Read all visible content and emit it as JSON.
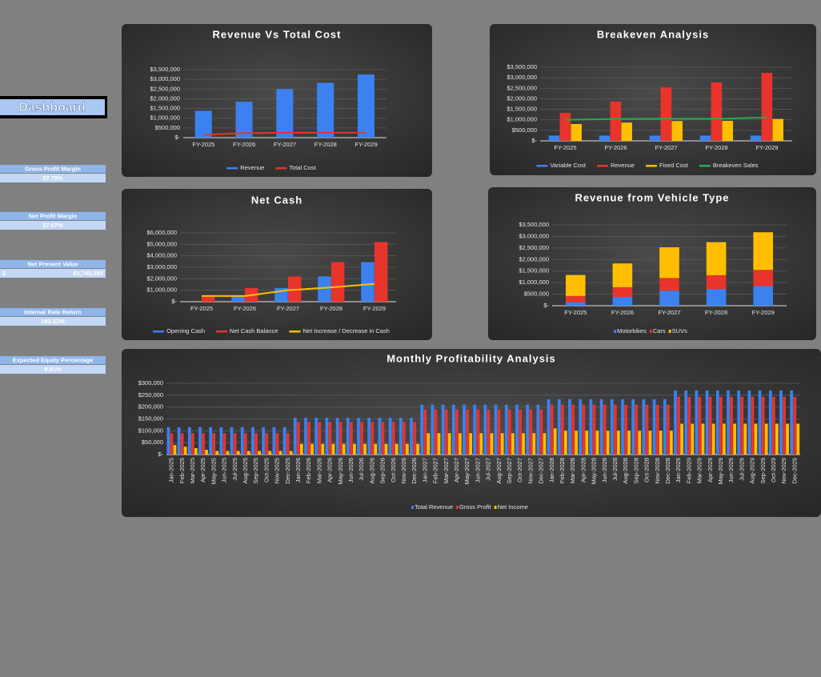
{
  "sidebar": {
    "title": "Dashboard",
    "kpis": [
      {
        "label": "Gross Profit Margin",
        "value": "87.79%"
      },
      {
        "label": "Net Profit Margin",
        "value": "37.07%"
      },
      {
        "label": "Net Present Value",
        "prefix": "$",
        "value": "61,740,399"
      },
      {
        "label": "Internal Rate Return",
        "value": "192.33%"
      },
      {
        "label": "Expected Equity Percentage",
        "value": "9.81%"
      }
    ]
  },
  "chart_data": [
    {
      "type": "bar",
      "title": "Revenue Vs Total Cost",
      "categories": [
        "FY-2025",
        "FY-2026",
        "FY-2027",
        "FY-2028",
        "FY-2029"
      ],
      "series": [
        {
          "name": "Revenue",
          "type": "bar",
          "color": "#3b82f0",
          "values": [
            1380000,
            1850000,
            2500000,
            2820000,
            3250000
          ]
        },
        {
          "name": "Total Cost",
          "type": "line",
          "color": "#e8342b",
          "values": [
            150000,
            230000,
            250000,
            250000,
            250000
          ]
        }
      ],
      "ylim": [
        0,
        3500000
      ],
      "yticks": [
        {
          "value": 0,
          "label": "$-"
        },
        {
          "value": 500000,
          "label": "$500,000"
        },
        {
          "value": 1000000,
          "label": "$1,000,000"
        },
        {
          "value": 1500000,
          "label": "$1,500,000"
        },
        {
          "value": 2000000,
          "label": "$2,000,000"
        },
        {
          "value": 2500000,
          "label": "$2,500,000"
        },
        {
          "value": 3000000,
          "label": "$3,000,000"
        },
        {
          "value": 3500000,
          "label": "$3,500,000"
        }
      ],
      "grid": true,
      "legend": "bottom"
    },
    {
      "type": "bar",
      "title": "Breakeven Analysis",
      "categories": [
        "FY-2025",
        "FY-2026",
        "FY-2027",
        "FY-2028",
        "FY-2029"
      ],
      "series": [
        {
          "name": "Variable Cost",
          "type": "bar",
          "color": "#3b82f0",
          "values": [
            250000,
            250000,
            250000,
            250000,
            250000
          ]
        },
        {
          "name": "Revenue",
          "type": "bar",
          "color": "#e8342b",
          "values": [
            1330000,
            1870000,
            2540000,
            2780000,
            3230000
          ]
        },
        {
          "name": "Fixed Cost",
          "type": "bar",
          "color": "#ffbf00",
          "values": [
            800000,
            870000,
            940000,
            950000,
            1040000
          ]
        },
        {
          "name": "Breakeven Sales",
          "type": "line",
          "color": "#2ea84a",
          "values": [
            1000000,
            1040000,
            1050000,
            1050000,
            1110000
          ]
        }
      ],
      "ylim": [
        0,
        3500000
      ],
      "yticks": [
        {
          "value": 0,
          "label": "$-"
        },
        {
          "value": 500000,
          "label": "$500,000"
        },
        {
          "value": 1000000,
          "label": "$1,000,000"
        },
        {
          "value": 1500000,
          "label": "$1,500,000"
        },
        {
          "value": 2000000,
          "label": "$2,000,000"
        },
        {
          "value": 2500000,
          "label": "$2,500,000"
        },
        {
          "value": 3000000,
          "label": "$3,000,000"
        },
        {
          "value": 3500000,
          "label": "$3,500,000"
        }
      ],
      "grid": true,
      "legend": "bottom"
    },
    {
      "type": "bar",
      "title": "Net Cash",
      "categories": [
        "FY-2025",
        "FY-2026",
        "FY-2027",
        "FY-2028",
        "FY-2029"
      ],
      "series": [
        {
          "name": "Opening Cash",
          "type": "bar",
          "color": "#3b82f0",
          "values": [
            0,
            500000,
            1200000,
            2200000,
            3450000
          ]
        },
        {
          "name": "Net Cash Balance",
          "type": "bar",
          "color": "#e8342b",
          "values": [
            500000,
            1200000,
            2200000,
            3450000,
            5200000
          ]
        },
        {
          "name": "Net Increase / Decrease in Cash",
          "type": "line",
          "color": "#ffbf00",
          "values": [
            500000,
            500000,
            1000000,
            1250000,
            1550000
          ]
        }
      ],
      "ylim": [
        0,
        6000000
      ],
      "yticks": [
        {
          "value": 0,
          "label": "$-"
        },
        {
          "value": 1000000,
          "label": "$1,000,000"
        },
        {
          "value": 2000000,
          "label": "$2,000,000"
        },
        {
          "value": 3000000,
          "label": "$3,000,000"
        },
        {
          "value": 4000000,
          "label": "$4,000,000"
        },
        {
          "value": 5000000,
          "label": "$5,000,000"
        },
        {
          "value": 6000000,
          "label": "$6,000,000"
        }
      ],
      "grid": true,
      "legend": "bottom"
    },
    {
      "type": "stacked_bar",
      "title": "Revenue from Vehicle Type",
      "categories": [
        "FY-2025",
        "FY-2026",
        "FY-2027",
        "FY-2028",
        "FY-2029"
      ],
      "series": [
        {
          "name": "Motorbikes",
          "type": "bar",
          "color": "#3b82f0",
          "values": [
            150000,
            380000,
            650000,
            720000,
            850000
          ]
        },
        {
          "name": "Cars",
          "type": "bar",
          "color": "#e8342b",
          "values": [
            270000,
            420000,
            550000,
            600000,
            700000
          ]
        },
        {
          "name": "SUVs",
          "type": "bar",
          "color": "#ffbf00",
          "values": [
            910000,
            1030000,
            1330000,
            1430000,
            1630000
          ]
        }
      ],
      "ylim": [
        0,
        3500000
      ],
      "yticks": [
        {
          "value": 0,
          "label": "$-"
        },
        {
          "value": 500000,
          "label": "$500,000"
        },
        {
          "value": 1000000,
          "label": "$1,000,000"
        },
        {
          "value": 1500000,
          "label": "$1,500,000"
        },
        {
          "value": 2000000,
          "label": "$2,000,000"
        },
        {
          "value": 2500000,
          "label": "$2,500,000"
        },
        {
          "value": 3000000,
          "label": "$3,000,000"
        },
        {
          "value": 3500000,
          "label": "$3,500,000"
        }
      ],
      "grid": true,
      "legend": "bottom"
    },
    {
      "type": "bar",
      "title": "Monthly Profitability Analysis",
      "categories": [
        "Jan-2025",
        "Feb-2025",
        "Mar-2025",
        "Apr-2025",
        "May-2025",
        "Jun-2025",
        "Jul-2025",
        "Aug-2025",
        "Sep-2025",
        "Oct-2025",
        "Nov-2025",
        "Dec-2025",
        "Jan-2026",
        "Feb-2026",
        "Mar-2026",
        "Apr-2026",
        "May-2026",
        "Jun-2026",
        "Jul-2026",
        "Aug-2026",
        "Sep-2026",
        "Oct-2026",
        "Nov-2026",
        "Dec-2026",
        "Jan-2027",
        "Feb-2027",
        "Mar-2027",
        "Apr-2027",
        "May-2027",
        "Jun-2027",
        "Jul-2027",
        "Aug-2027",
        "Sep-2027",
        "Oct-2027",
        "Nov-2027",
        "Dec-2027",
        "Jan-2028",
        "Feb-2028",
        "Mar-2028",
        "Apr-2028",
        "May-2028",
        "Jun-2028",
        "Jul-2028",
        "Aug-2028",
        "Sep-2028",
        "Oct-2028",
        "Nov-2028",
        "Dec-2028",
        "Jan-2029",
        "Feb-2029",
        "Mar-2029",
        "Apr-2029",
        "May-2029",
        "Jun-2029",
        "Jul-2029",
        "Aug-2029",
        "Sep-2029",
        "Oct-2029",
        "Nov-2029",
        "Dec-2029"
      ],
      "series": [
        {
          "name": "Total Revenue",
          "type": "bar",
          "color": "#3b82f0",
          "values": [
            115000,
            115000,
            115000,
            115000,
            115000,
            115000,
            115000,
            115000,
            115000,
            115000,
            115000,
            115000,
            155000,
            155000,
            155000,
            155000,
            155000,
            155000,
            155000,
            155000,
            155000,
            155000,
            155000,
            155000,
            210000,
            210000,
            210000,
            210000,
            210000,
            210000,
            210000,
            210000,
            210000,
            210000,
            210000,
            210000,
            233000,
            233000,
            233000,
            233000,
            233000,
            233000,
            233000,
            233000,
            233000,
            233000,
            233000,
            233000,
            270000,
            270000,
            270000,
            270000,
            270000,
            270000,
            270000,
            270000,
            270000,
            270000,
            270000,
            270000
          ]
        },
        {
          "name": "Gross Profit",
          "type": "bar",
          "color": "#e8342b",
          "values": [
            90000,
            90000,
            90000,
            90000,
            90000,
            90000,
            90000,
            90000,
            90000,
            90000,
            90000,
            90000,
            137000,
            137000,
            137000,
            137000,
            137000,
            137000,
            137000,
            137000,
            137000,
            137000,
            137000,
            137000,
            190000,
            190000,
            190000,
            190000,
            190000,
            190000,
            190000,
            190000,
            190000,
            190000,
            190000,
            190000,
            210000,
            210000,
            210000,
            210000,
            210000,
            210000,
            210000,
            210000,
            210000,
            210000,
            210000,
            210000,
            243000,
            243000,
            243000,
            243000,
            243000,
            243000,
            243000,
            243000,
            243000,
            243000,
            243000,
            243000
          ]
        },
        {
          "name": "Net Income",
          "type": "bar",
          "color": "#ffbf00",
          "values": [
            40000,
            33000,
            27000,
            20000,
            15000,
            15000,
            15000,
            15000,
            15000,
            15000,
            15000,
            15000,
            45000,
            45000,
            45000,
            45000,
            45000,
            45000,
            45000,
            45000,
            45000,
            45000,
            45000,
            45000,
            90000,
            90000,
            90000,
            90000,
            90000,
            90000,
            90000,
            90000,
            90000,
            90000,
            90000,
            90000,
            110000,
            100000,
            100000,
            100000,
            100000,
            100000,
            100000,
            100000,
            100000,
            100000,
            100000,
            100000,
            130000,
            130000,
            130000,
            130000,
            130000,
            130000,
            130000,
            130000,
            130000,
            130000,
            130000,
            130000
          ]
        }
      ],
      "ylim": [
        0,
        300000
      ],
      "yticks": [
        {
          "value": 0,
          "label": "$-"
        },
        {
          "value": 50000,
          "label": "$50,000"
        },
        {
          "value": 100000,
          "label": "$100,000"
        },
        {
          "value": 150000,
          "label": "$150,000"
        },
        {
          "value": 200000,
          "label": "$200,000"
        },
        {
          "value": 250000,
          "label": "$250,000"
        },
        {
          "value": 300000,
          "label": "$300,000"
        }
      ],
      "grid": true,
      "legend": "bottom"
    }
  ]
}
